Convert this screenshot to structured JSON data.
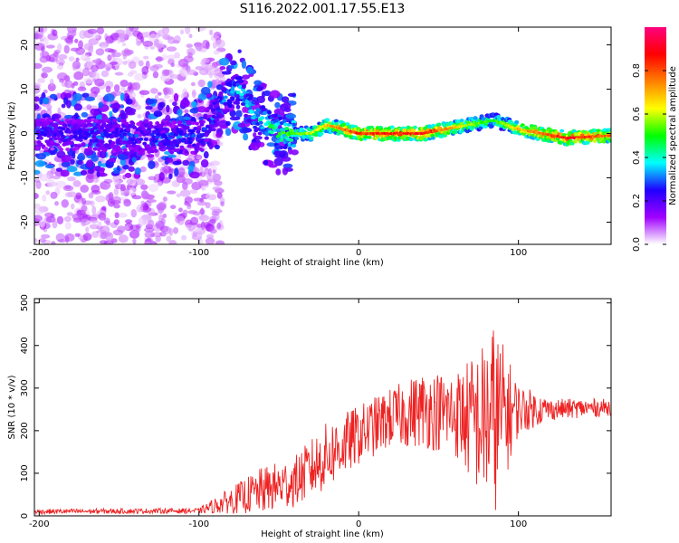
{
  "title": "S116.2022.001.17.55.E13",
  "chart_data": [
    {
      "type": "heatmap",
      "xlabel": "Height of straight line (km)",
      "ylabel": "Frequency (Hz)",
      "xlim": [
        -203,
        158
      ],
      "ylim": [
        -25,
        24
      ],
      "xticks": [
        -200,
        -100,
        0,
        100
      ],
      "yticks": [
        -20,
        -10,
        0,
        10,
        20
      ],
      "colorbar": {
        "label": "Normalized spectral amplitude",
        "range": [
          0,
          1
        ],
        "ticks": [
          "0.0",
          "0.2",
          "0.4",
          "0.6",
          "0.8"
        ],
        "colormap": [
          "#ffffff",
          "#a000ff",
          "#2000ff",
          "#00ffff",
          "#00ff00",
          "#ffff00",
          "#ff8000",
          "#ff0000",
          "#ff0080"
        ]
      },
      "ridge": {
        "description_points": [
          {
            "x": -200,
            "f": 0.0,
            "amp": 0.25
          },
          {
            "x": -100,
            "f": -1.0,
            "amp": 0.3
          },
          {
            "x": -85,
            "f": 8.0,
            "amp": 0.35
          },
          {
            "x": -75,
            "f": 10.0,
            "amp": 0.4
          },
          {
            "x": -65,
            "f": 4.0,
            "amp": 0.4
          },
          {
            "x": -50,
            "f": 0.0,
            "amp": 0.5
          },
          {
            "x": -30,
            "f": 0.0,
            "amp": 0.6
          },
          {
            "x": -20,
            "f": 2.0,
            "amp": 0.7
          },
          {
            "x": 0,
            "f": 0.0,
            "amp": 0.85
          },
          {
            "x": 40,
            "f": 0.0,
            "amp": 0.9
          },
          {
            "x": 70,
            "f": 2.0,
            "amp": 0.6
          },
          {
            "x": 85,
            "f": 3.0,
            "amp": 0.5
          },
          {
            "x": 100,
            "f": 1.0,
            "amp": 0.7
          },
          {
            "x": 130,
            "f": -1.0,
            "amp": 0.9
          },
          {
            "x": 158,
            "f": -0.5,
            "amp": 0.8
          }
        ]
      }
    },
    {
      "type": "line",
      "xlabel": "Height of straight line (km)",
      "ylabel": "SNR (10 * v/v)",
      "xlim": [
        -203,
        158
      ],
      "ylim": [
        0,
        510
      ],
      "xticks": [
        -200,
        -100,
        0,
        100
      ],
      "yticks": [
        0,
        100,
        200,
        300,
        400,
        500
      ],
      "color": "#ee2222",
      "envelope": [
        {
          "x": -203,
          "mean": 10,
          "spread": 6
        },
        {
          "x": -100,
          "mean": 12,
          "spread": 6
        },
        {
          "x": -85,
          "mean": 30,
          "spread": 25
        },
        {
          "x": -60,
          "mean": 60,
          "spread": 55
        },
        {
          "x": -40,
          "mean": 80,
          "spread": 60
        },
        {
          "x": -20,
          "mean": 140,
          "spread": 80
        },
        {
          "x": 0,
          "mean": 190,
          "spread": 70
        },
        {
          "x": 20,
          "mean": 230,
          "spread": 70
        },
        {
          "x": 40,
          "mean": 250,
          "spread": 90
        },
        {
          "x": 60,
          "mean": 240,
          "spread": 100
        },
        {
          "x": 75,
          "mean": 220,
          "spread": 170
        },
        {
          "x": 85,
          "mean": 230,
          "spread": 230
        },
        {
          "x": 100,
          "mean": 250,
          "spread": 60
        },
        {
          "x": 120,
          "mean": 250,
          "spread": 25
        },
        {
          "x": 158,
          "mean": 255,
          "spread": 20
        }
      ]
    }
  ]
}
